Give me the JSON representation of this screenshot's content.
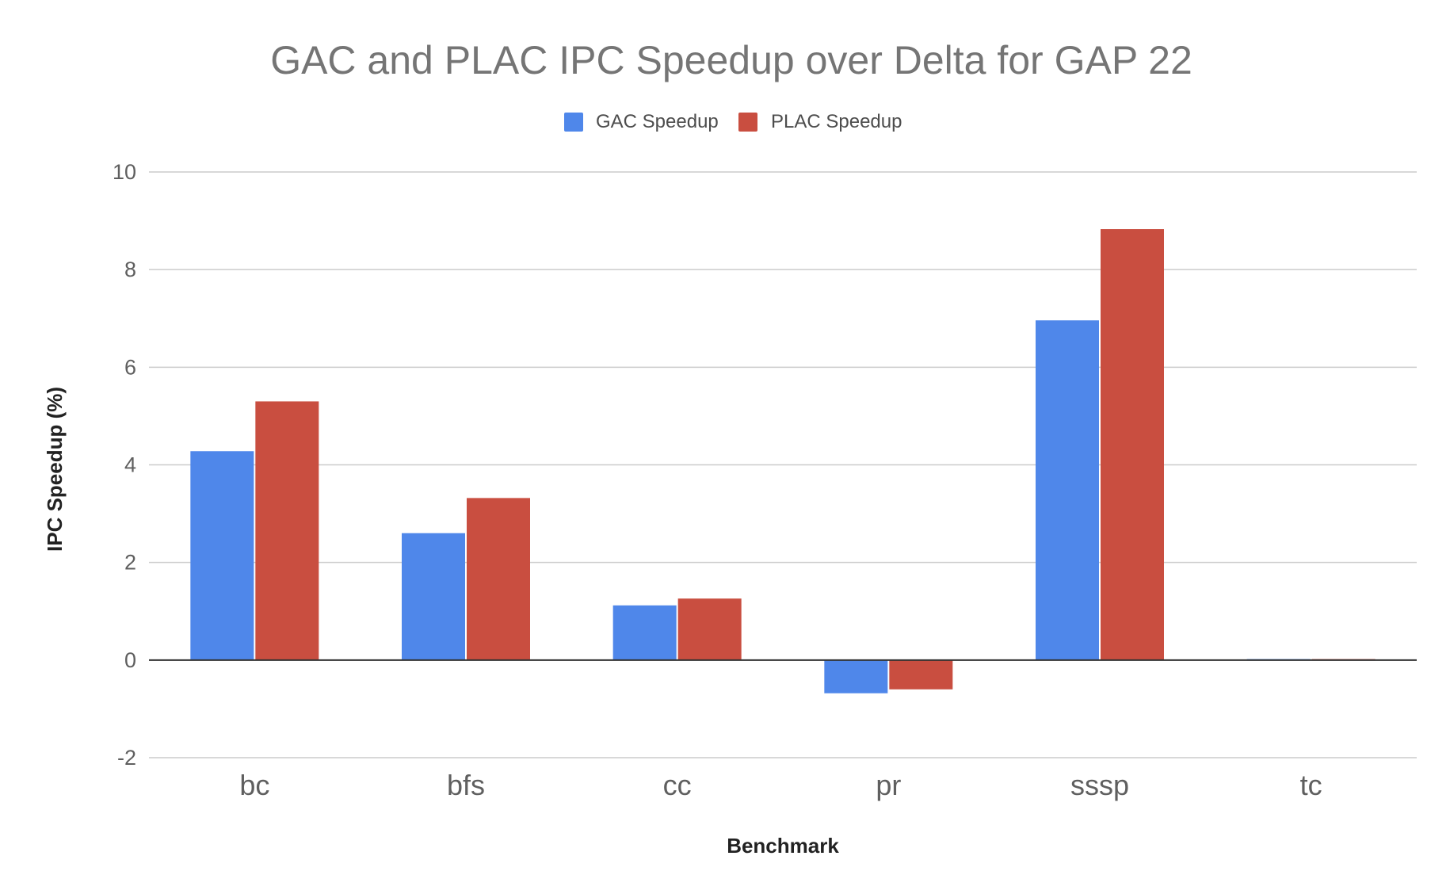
{
  "chart_data": {
    "type": "bar",
    "title": "GAC and PLAC IPC Speedup over Delta for GAP 22",
    "xlabel": "Benchmark",
    "ylabel": "IPC Speedup (%)",
    "categories": [
      "bc",
      "bfs",
      "cc",
      "pr",
      "sssp",
      "tc"
    ],
    "series": [
      {
        "name": "GAC Speedup",
        "color": "#4f87ea",
        "values": [
          4.28,
          2.6,
          1.12,
          -0.68,
          6.96,
          0.02
        ]
      },
      {
        "name": "PLAC Speedup",
        "color": "#c94e40",
        "values": [
          5.3,
          3.32,
          1.26,
          -0.6,
          8.83,
          0.02
        ]
      }
    ],
    "ylim": [
      -2,
      10
    ],
    "yticks": [
      -2,
      0,
      2,
      4,
      6,
      8,
      10
    ],
    "grid": true,
    "legend_position": "top-center"
  }
}
